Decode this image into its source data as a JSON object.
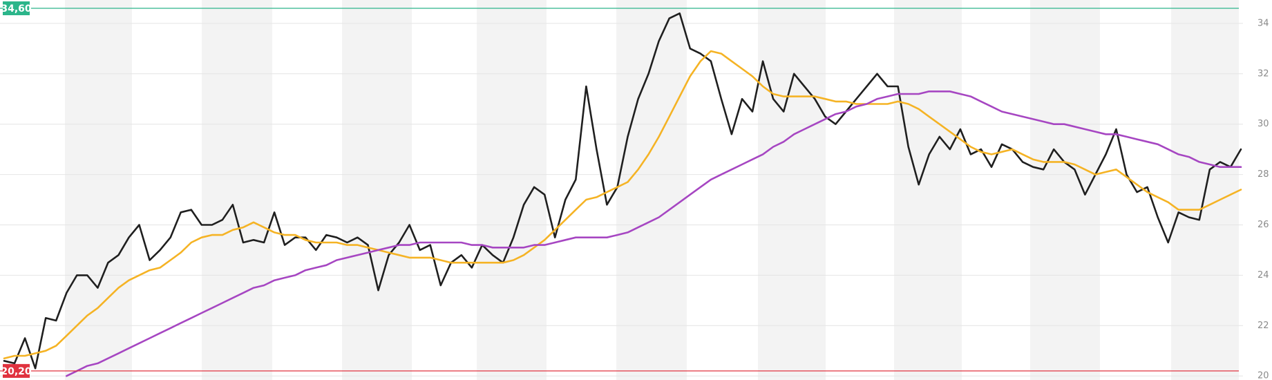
{
  "chart_data": {
    "type": "line",
    "ylim": [
      19.84,
      34.93
    ],
    "yticks": [
      20,
      22,
      24,
      26,
      28,
      30,
      32,
      34
    ],
    "grid": true,
    "reference_lines": [
      {
        "value": 34.6,
        "label": "34,60",
        "color": "#2bb58a"
      },
      {
        "value": 20.2,
        "label": "20,20",
        "color": "#e0333f"
      }
    ],
    "series": [
      {
        "color": "#1f1f1f",
        "values": [
          20.6,
          20.5,
          21.5,
          20.3,
          22.3,
          22.2,
          23.3,
          24.0,
          24.0,
          23.5,
          24.5,
          24.8,
          25.5,
          26.0,
          24.6,
          25.0,
          25.5,
          26.5,
          26.6,
          26.0,
          26.0,
          26.2,
          26.8,
          25.3,
          25.4,
          25.3,
          26.5,
          25.2,
          25.5,
          25.5,
          25.0,
          25.6,
          25.5,
          25.3,
          25.5,
          25.2,
          23.4,
          24.8,
          25.3,
          26.0,
          25.0,
          25.2,
          23.6,
          24.5,
          24.8,
          24.3,
          25.2,
          24.8,
          24.5,
          25.5,
          26.8,
          27.5,
          27.2,
          25.5,
          27.0,
          27.8,
          31.5,
          29.0,
          26.8,
          27.5,
          29.5,
          31.0,
          32.0,
          33.3,
          34.2,
          34.4,
          33.0,
          32.8,
          32.5,
          31.0,
          29.6,
          31.0,
          30.5,
          32.5,
          31.0,
          30.5,
          32.0,
          31.5,
          31.0,
          30.3,
          30.0,
          30.5,
          31.0,
          31.5,
          32.0,
          31.5,
          31.5,
          29.1,
          27.6,
          28.8,
          29.5,
          29.0,
          29.8,
          28.8,
          29.0,
          28.3,
          29.2,
          29.0,
          28.5,
          28.3,
          28.2,
          29.0,
          28.5,
          28.2,
          27.2,
          28.0,
          28.8,
          29.8,
          28.0,
          27.3,
          27.5,
          26.3,
          25.3,
          26.5,
          26.3,
          26.2,
          28.2,
          28.5,
          28.3,
          29.0
        ]
      },
      {
        "color": "#f5b324",
        "values": [
          20.7,
          20.8,
          20.8,
          20.9,
          21.0,
          21.2,
          21.6,
          22.0,
          22.4,
          22.7,
          23.1,
          23.5,
          23.8,
          24.0,
          24.2,
          24.3,
          24.6,
          24.9,
          25.3,
          25.5,
          25.6,
          25.6,
          25.8,
          25.9,
          26.1,
          25.9,
          25.7,
          25.6,
          25.6,
          25.4,
          25.3,
          25.3,
          25.3,
          25.2,
          25.2,
          25.1,
          25.0,
          24.9,
          24.8,
          24.7,
          24.7,
          24.7,
          24.6,
          24.5,
          24.5,
          24.5,
          24.5,
          24.5,
          24.5,
          24.6,
          24.8,
          25.1,
          25.4,
          25.8,
          26.2,
          26.6,
          27.0,
          27.1,
          27.3,
          27.5,
          27.7,
          28.2,
          28.8,
          29.5,
          30.3,
          31.1,
          31.9,
          32.5,
          32.9,
          32.8,
          32.5,
          32.2,
          31.9,
          31.5,
          31.2,
          31.1,
          31.1,
          31.1,
          31.1,
          31.0,
          30.9,
          30.9,
          30.8,
          30.8,
          30.8,
          30.8,
          30.9,
          30.8,
          30.6,
          30.3,
          30.0,
          29.7,
          29.4,
          29.1,
          28.9,
          28.8,
          28.9,
          29.0,
          28.8,
          28.6,
          28.5,
          28.5,
          28.5,
          28.4,
          28.2,
          28.0,
          28.1,
          28.2,
          27.9,
          27.6,
          27.3,
          27.1,
          26.9,
          26.6,
          26.6,
          26.6,
          26.8,
          27.0,
          27.2,
          27.4
        ]
      },
      {
        "color": "#a646c2",
        "values": [
          null,
          null,
          null,
          null,
          null,
          null,
          20.0,
          20.2,
          20.4,
          20.5,
          20.7,
          20.9,
          21.1,
          21.3,
          21.5,
          21.7,
          21.9,
          22.1,
          22.3,
          22.5,
          22.7,
          22.9,
          23.1,
          23.3,
          23.5,
          23.6,
          23.8,
          23.9,
          24.0,
          24.2,
          24.3,
          24.4,
          24.6,
          24.7,
          24.8,
          24.9,
          25.0,
          25.1,
          25.2,
          25.2,
          25.3,
          25.3,
          25.3,
          25.3,
          25.3,
          25.2,
          25.2,
          25.1,
          25.1,
          25.1,
          25.1,
          25.2,
          25.2,
          25.3,
          25.4,
          25.5,
          25.5,
          25.5,
          25.5,
          25.6,
          25.7,
          25.9,
          26.1,
          26.3,
          26.6,
          26.9,
          27.2,
          27.5,
          27.8,
          28.0,
          28.2,
          28.4,
          28.6,
          28.8,
          29.1,
          29.3,
          29.6,
          29.8,
          30.0,
          30.2,
          30.4,
          30.5,
          30.7,
          30.8,
          31.0,
          31.1,
          31.2,
          31.2,
          31.2,
          31.3,
          31.3,
          31.3,
          31.2,
          31.1,
          30.9,
          30.7,
          30.5,
          30.4,
          30.3,
          30.2,
          30.1,
          30.0,
          30.0,
          29.9,
          29.8,
          29.7,
          29.6,
          29.6,
          29.5,
          29.4,
          29.3,
          29.2,
          29.0,
          28.8,
          28.7,
          28.5,
          28.4,
          28.3,
          28.3,
          28.3
        ]
      }
    ]
  }
}
